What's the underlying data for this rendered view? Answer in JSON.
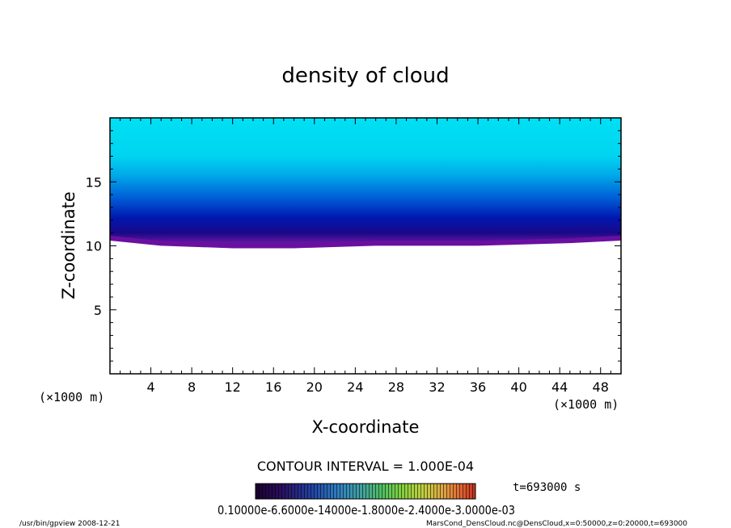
{
  "chart_data": {
    "type": "heatmap",
    "title": "density of cloud",
    "xlabel": "X-coordinate",
    "ylabel": "Z-coordinate",
    "x_unit_left": "(×1000 m)",
    "x_unit_right": "(×1000 m)",
    "xlim": [
      0,
      50
    ],
    "ylim": [
      0,
      20
    ],
    "x_ticks": [
      4,
      8,
      12,
      16,
      20,
      24,
      28,
      32,
      36,
      40,
      44,
      48
    ],
    "y_ticks": [
      5,
      10,
      15
    ],
    "cloud_base_profile": {
      "x": [
        0,
        5,
        12,
        18,
        26,
        29,
        36,
        45,
        50
      ],
      "z": [
        10.6,
        10.2,
        10.0,
        10.0,
        10.2,
        10.2,
        10.2,
        10.4,
        10.6
      ]
    },
    "field_description": "cloud density increases downward toward a cloud base near z=10 km",
    "contour_interval_text": "CONTOUR INTERVAL = 1.000E-04",
    "time_label": "t=693000 s",
    "colorbar_labels_text": "0.10000e-6.6000e-14000e-1.8000e-2.4000e-3.0000e-03",
    "colorbar_colors": [
      "#1a0030",
      "#2a1060",
      "#2040a0",
      "#3080c0",
      "#40a0a0",
      "#50c060",
      "#80d040",
      "#c0d040",
      "#e0a040",
      "#e06030",
      "#c03020"
    ]
  },
  "footer": {
    "left": "/usr/bin/gpview   2008-12-21",
    "right": "MarsCond_DensCloud.nc@DensCloud,x=0:50000,z=0:20000,t=693000"
  }
}
